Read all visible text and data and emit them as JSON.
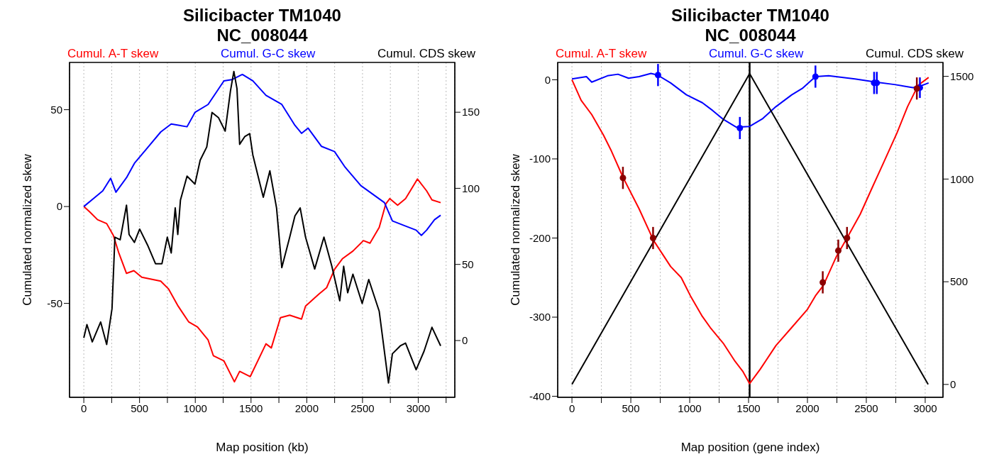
{
  "chart_data": [
    {
      "type": "line",
      "title": "Silicibacter TM1040",
      "subtitle": "NC_008044",
      "xlabel": "Map position (kb)",
      "ylabel": "Cumulated normalized skew",
      "xlim": [
        -128,
        3328
      ],
      "xticks": [
        0,
        {
          "value": 250,
          "label": null
        },
        500,
        {
          "value": 750,
          "label": null
        },
        1000,
        {
          "value": 1250,
          "label": null
        },
        1500,
        {
          "value": 1750,
          "label": null
        },
        2000,
        {
          "value": 2250,
          "label": null
        },
        2500,
        {
          "value": 2750,
          "label": null
        },
        3000,
        {
          "value": 3250,
          "label": null
        }
      ],
      "ylim": [
        -98.5,
        74.4
      ],
      "yticks": [
        -50,
        0,
        50
      ],
      "y2lim": [
        -37.3,
        182.7
      ],
      "y2ticks": [
        0,
        50,
        100,
        150
      ],
      "grid": "x",
      "legend": "top",
      "series": [
        {
          "name": "Cumul. A-T skew",
          "color": "#ff0000",
          "x": [
            0,
            52,
            123,
            205,
            265,
            312,
            383,
            449,
            520,
            690,
            761,
            846,
            940,
            1020,
            1115,
            1162,
            1257,
            1351,
            1398,
            1493,
            1634,
            1682,
            1764,
            1847,
            1953,
            1989,
            2107,
            2178,
            2249,
            2319,
            2414,
            2508,
            2567,
            2650,
            2709,
            2745,
            2815,
            2886,
            2993,
            3075,
            3123,
            3201
          ],
          "values": [
            0,
            -2.7,
            -6.8,
            -8.8,
            -14.9,
            -23.6,
            -34.5,
            -33.1,
            -36.5,
            -38.5,
            -42.6,
            -51.4,
            -59.5,
            -62.2,
            -68.9,
            -77,
            -79.7,
            -90.5,
            -85.1,
            -87.8,
            -70.9,
            -73,
            -57.4,
            -56.1,
            -58.1,
            -51.4,
            -45.3,
            -41.9,
            -32.4,
            -27,
            -23,
            -17.6,
            -18.9,
            -10.8,
            1.4,
            4.1,
            0.7,
            4.1,
            14.2,
            8.1,
            3.4,
            2
          ]
        },
        {
          "name": "Cumul. G-C skew",
          "color": "#0000ff",
          "x": [
            0,
            99,
            170,
            241,
            288,
            383,
            454,
            572,
            690,
            784,
            926,
            997,
            1115,
            1257,
            1327,
            1422,
            1516,
            1634,
            1776,
            1894,
            1953,
            2012,
            2131,
            2249,
            2344,
            2485,
            2697,
            2768,
            2886,
            2981,
            3028,
            3075,
            3146,
            3201
          ],
          "values": [
            0,
            4.7,
            8.1,
            14.6,
            7.4,
            14.9,
            22.3,
            30.4,
            38.5,
            42.6,
            41.2,
            48.6,
            52.7,
            64.9,
            65.5,
            68.2,
            64.9,
            57.4,
            52.7,
            41.9,
            37.8,
            40.5,
            31.1,
            28.4,
            20.3,
            10.8,
            2,
            -7.4,
            -10.1,
            -12.2,
            -14.9,
            -12.2,
            -6.8,
            -4.5
          ]
        },
        {
          "name": "Cumul. CDS skew",
          "color": "#000000",
          "axis": "y2",
          "x": [
            0,
            28,
            76,
            151,
            205,
            253,
            279,
            326,
            383,
            406,
            454,
            501,
            572,
            643,
            701,
            749,
            784,
            820,
            843,
            867,
            926,
            997,
            1044,
            1103,
            1150,
            1209,
            1268,
            1315,
            1346,
            1374,
            1398,
            1445,
            1488,
            1516,
            1610,
            1669,
            1729,
            1776,
            1847,
            1894,
            1941,
            1989,
            2071,
            2154,
            2225,
            2296,
            2331,
            2367,
            2414,
            2497,
            2556,
            2650,
            2733,
            2768,
            2839,
            2886,
            2981,
            3052,
            3123,
            3201
          ],
          "values": [
            1.7,
            10.5,
            -0.9,
            12.2,
            -2.6,
            20.9,
            67.9,
            66.2,
            88.9,
            69.7,
            64.5,
            73.2,
            62.7,
            50.5,
            50.5,
            67.9,
            57.5,
            87.1,
            69.7,
            92.3,
            108,
            102.8,
            118.5,
            127.2,
            149.8,
            146.3,
            137.6,
            163.8,
            176.8,
            165.5,
            128.9,
            134.1,
            135.9,
            122,
            94.1,
            111.5,
            87.1,
            47.9,
            67.9,
            81.9,
            87.1,
            67.9,
            47,
            67.9,
            48.8,
            26.1,
            48.8,
            31.4,
            43.6,
            24.4,
            40.1,
            19.2,
            -27.9,
            -8.7,
            -3.5,
            -1.7,
            -19.2,
            -7,
            8.7,
            -3.5
          ]
        }
      ]
    },
    {
      "type": "line",
      "title": "Silicibacter TM1040",
      "subtitle": "NC_008044",
      "xlabel": "Map position (gene index)",
      "ylabel": "Cumulated normalized skew",
      "xlim": [
        -121,
        3151
      ],
      "xticks": [
        0,
        {
          "value": 250,
          "label": null
        },
        500,
        {
          "value": 750,
          "label": null
        },
        1000,
        {
          "value": 1250,
          "label": null
        },
        1500,
        {
          "value": 1750,
          "label": null
        },
        2000,
        {
          "value": 2250,
          "label": null
        },
        2500,
        {
          "value": 2750,
          "label": null
        },
        3000
      ],
      "ylim": [
        -401.3,
        21.9
      ],
      "yticks": [
        -400,
        -300,
        -200,
        -100,
        0
      ],
      "y2lim": [
        -62.7,
        1567.8
      ],
      "y2ticks": [
        0,
        500,
        1000,
        1500
      ],
      "grid": "x",
      "legend": "top",
      "ref_lines": [
        {
          "axis": "x",
          "value": 1509,
          "color": "#000000"
        }
      ],
      "series": [
        {
          "name": "Cumul. A-T skew",
          "color": "#ff0000",
          "x": [
            0,
            78,
            168,
            268,
            335,
            436,
            570,
            693,
            838,
            928,
            1006,
            1107,
            1174,
            1285,
            1386,
            1453,
            1509,
            1598,
            1732,
            1867,
            2001,
            2068,
            2135,
            2247,
            2336,
            2448,
            2560,
            2649,
            2761,
            2850,
            2940,
            3029
          ],
          "values": [
            0,
            -26,
            -44,
            -70,
            -90,
            -124,
            -163,
            -203,
            -236,
            -250,
            -273,
            -299,
            -313,
            -333,
            -356,
            -369,
            -384,
            -366,
            -336,
            -313,
            -290,
            -273,
            -260,
            -223,
            -200,
            -170,
            -133,
            -104,
            -67,
            -34,
            -7,
            3
          ]
        },
        {
          "name": "Cumul. G-C skew",
          "color": "#0000ff",
          "x": [
            0,
            123,
            168,
            302,
            391,
            481,
            570,
            671,
            727,
            838,
            972,
            1107,
            1196,
            1285,
            1397,
            1509,
            1621,
            1732,
            1867,
            1956,
            2068,
            2180,
            2403,
            2582,
            2738,
            2895,
            2940,
            3029
          ],
          "values": [
            1,
            4,
            -3,
            5,
            7,
            2,
            4,
            8,
            6,
            -4,
            -19,
            -29,
            -39,
            -50,
            -60,
            -59,
            -49,
            -34,
            -19,
            -11,
            4,
            5,
            1,
            -3,
            -6,
            -10,
            -9,
            -4
          ]
        },
        {
          "name": "Cumul. CDS skew",
          "color": "#000000",
          "axis": "y2",
          "x": [
            0,
            1509,
            3025
          ],
          "values": [
            0,
            1513,
            0
          ]
        },
        {
          "type": "scatter",
          "color": "#0000ff",
          "marker": "circle",
          "x": [
            731,
            1426,
            2068,
            2566,
            2589,
            2955
          ],
          "values": [
            6,
            -61,
            4,
            -4,
            -4,
            -10
          ],
          "errors": [
            14,
            14,
            14,
            14,
            14,
            13
          ]
        },
        {
          "type": "scatter",
          "color": "#8b0000",
          "marker": "circle",
          "x": [
            433,
            689,
            2130,
            2262,
            2336,
            2929
          ],
          "values": [
            -124,
            -200,
            -256,
            -216,
            -200,
            -11
          ],
          "errors": [
            14,
            14,
            14,
            14,
            14,
            14
          ]
        }
      ]
    }
  ]
}
